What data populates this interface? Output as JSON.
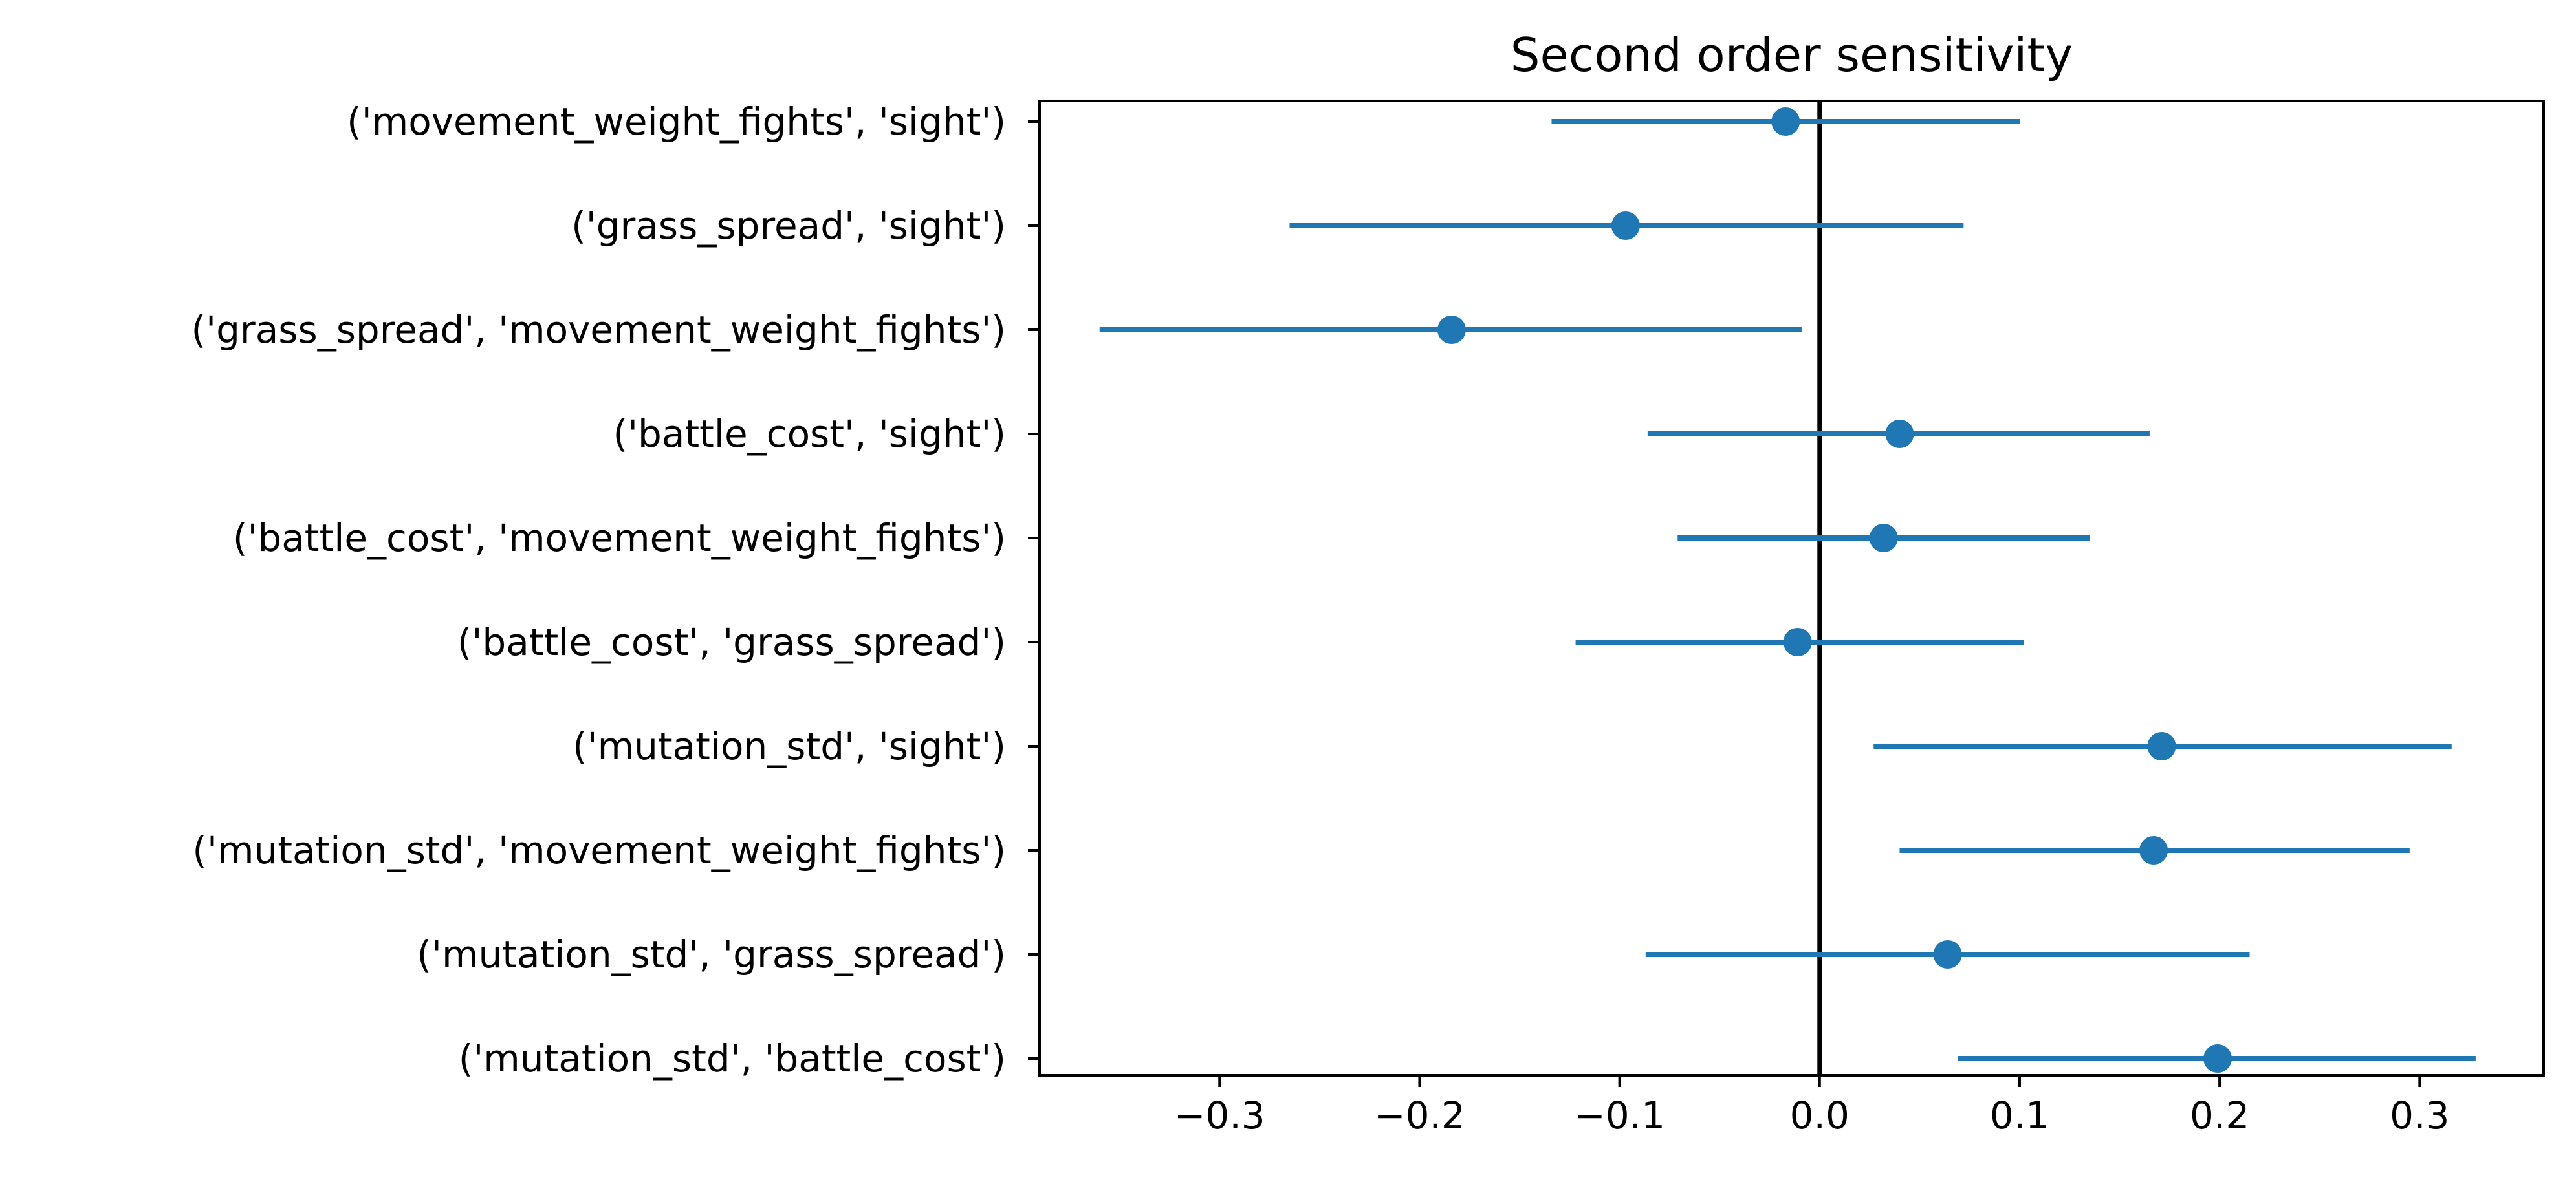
{
  "chart_data": {
    "type": "scatter",
    "title": "Second order sensitivity",
    "xlabel": "",
    "ylabel": "",
    "xlim": [
      -0.39,
      0.362
    ],
    "xticks": [
      -0.3,
      -0.2,
      -0.1,
      0.0,
      0.1,
      0.2,
      0.3
    ],
    "xtick_labels": [
      "−0.3",
      "−0.2",
      "−0.1",
      "0.0",
      "0.1",
      "0.2",
      "0.3"
    ],
    "reference_line_x": 0.0,
    "grid": false,
    "series_color": "#1f77b4",
    "categories": [
      "('movement_weight_fights', 'sight')",
      "('grass_spread', 'sight')",
      "('grass_spread', 'movement_weight_fights')",
      "('battle_cost', 'sight')",
      "('battle_cost', 'movement_weight_fights')",
      "('battle_cost', 'grass_spread')",
      "('mutation_std', 'sight')",
      "('mutation_std', 'movement_weight_fights')",
      "('mutation_std', 'grass_spread')",
      "('mutation_std', 'battle_cost')"
    ],
    "values": [
      -0.017,
      -0.097,
      -0.184,
      0.04,
      0.032,
      -0.011,
      0.171,
      0.167,
      0.064,
      0.199
    ],
    "ci_low": [
      -0.134,
      -0.265,
      -0.36,
      -0.086,
      -0.071,
      -0.122,
      0.027,
      0.04,
      -0.087,
      0.069
    ],
    "ci_high": [
      0.1,
      0.072,
      -0.009,
      0.165,
      0.135,
      0.102,
      0.316,
      0.295,
      0.215,
      0.328
    ]
  }
}
